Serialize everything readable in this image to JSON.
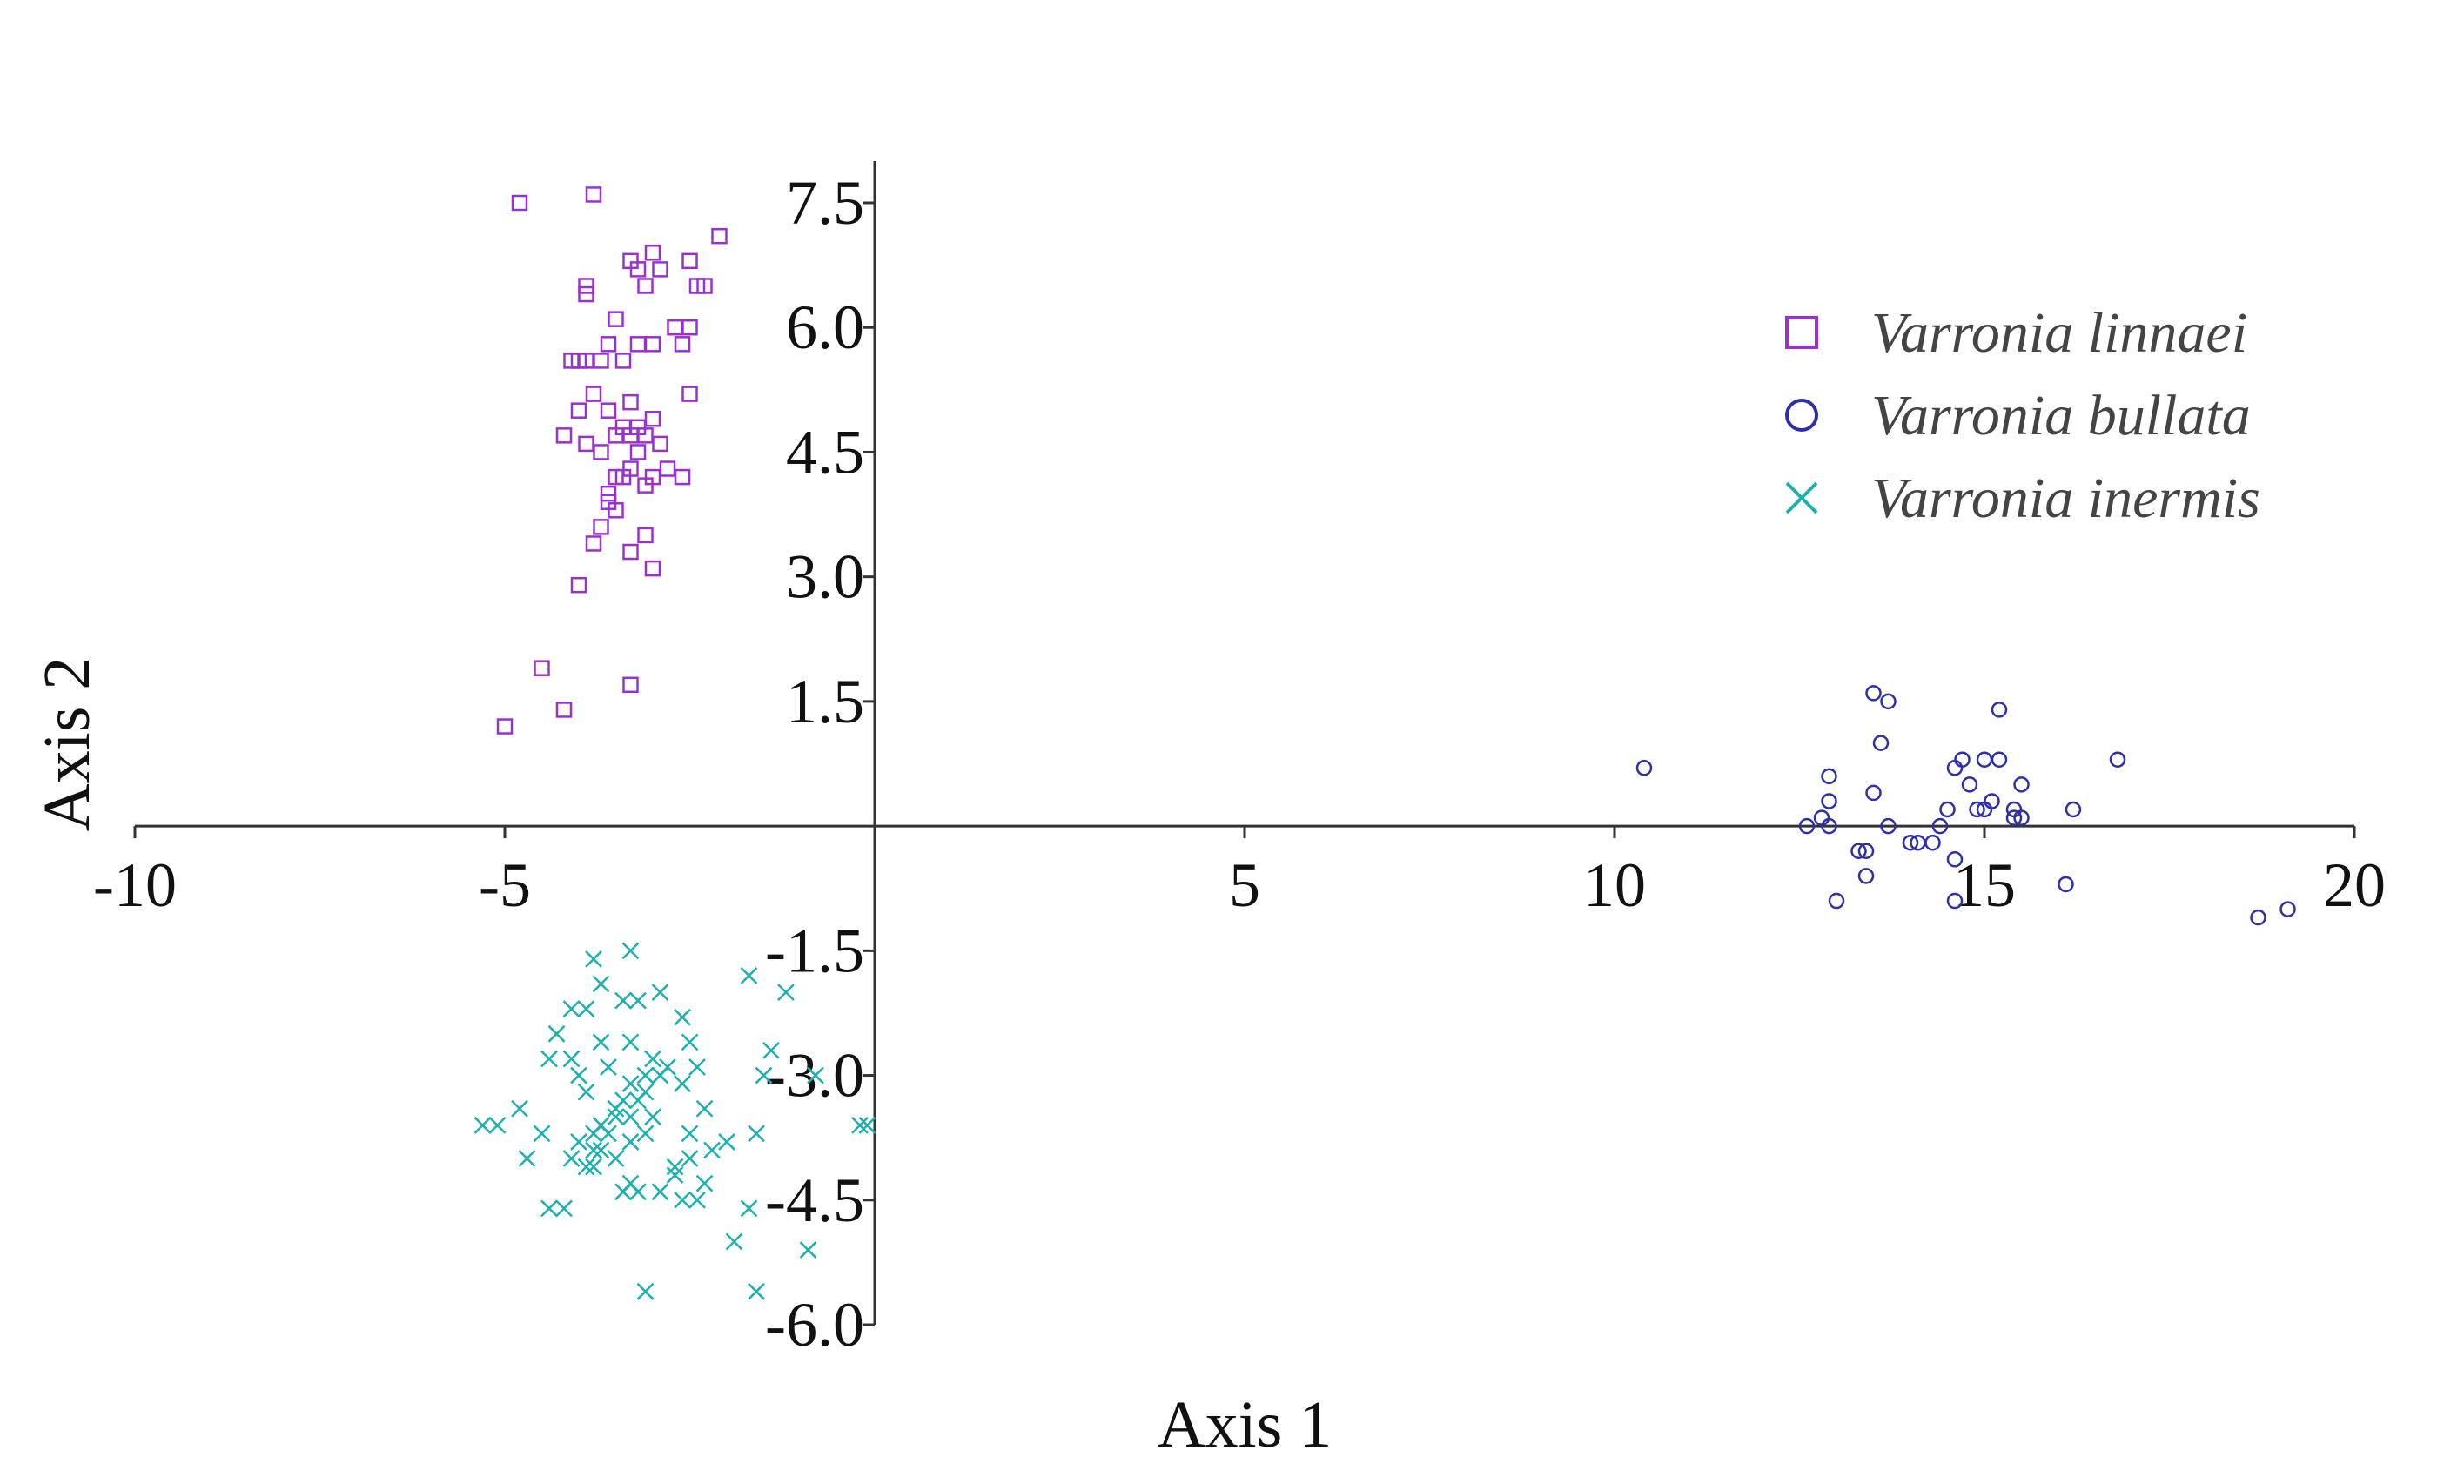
{
  "chart_data": {
    "type": "scatter",
    "title": "",
    "xlabel": "Axis 1",
    "ylabel": "Axis 2",
    "xlim": [
      -10,
      20
    ],
    "ylim": [
      -6.0,
      8.0
    ],
    "x_ticks": [
      -10,
      -5,
      5,
      10,
      15,
      20
    ],
    "x_tick_labels": [
      "-10",
      "-5",
      "5",
      "10",
      "15",
      "20"
    ],
    "y_ticks": [
      7.5,
      6.0,
      4.5,
      3.0,
      1.5,
      -1.5,
      -3.0,
      -4.5,
      -6.0
    ],
    "y_tick_labels": [
      "7.5",
      "6.0",
      "4.5",
      "3.0",
      "1.5",
      "-1.5",
      "-3.0",
      "-4.5",
      "-6.0"
    ],
    "grid": false,
    "legend_position": "top-right",
    "series": [
      {
        "name": "Varronia linnaei",
        "marker": "square",
        "color": "#9B30D0",
        "points": [
          [
            -4.8,
            7.5
          ],
          [
            -3.8,
            7.6
          ],
          [
            -2.1,
            7.1
          ],
          [
            -3.0,
            6.9
          ],
          [
            -3.3,
            6.8
          ],
          [
            -2.5,
            6.8
          ],
          [
            -3.2,
            6.7
          ],
          [
            -2.9,
            6.7
          ],
          [
            -3.1,
            6.5
          ],
          [
            -2.4,
            6.5
          ],
          [
            -2.3,
            6.5
          ],
          [
            -3.9,
            6.5
          ],
          [
            -3.9,
            6.4
          ],
          [
            -3.5,
            6.1
          ],
          [
            -2.7,
            6.0
          ],
          [
            -2.5,
            6.0
          ],
          [
            -3.2,
            5.8
          ],
          [
            -3.0,
            5.8
          ],
          [
            -3.6,
            5.8
          ],
          [
            -4.1,
            5.6
          ],
          [
            -4.0,
            5.6
          ],
          [
            -3.9,
            5.6
          ],
          [
            -3.7,
            5.6
          ],
          [
            -3.4,
            5.6
          ],
          [
            -2.6,
            5.8
          ],
          [
            -2.5,
            5.2
          ],
          [
            -3.8,
            5.2
          ],
          [
            -3.3,
            5.1
          ],
          [
            -4.0,
            5.0
          ],
          [
            -3.6,
            5.0
          ],
          [
            -3.0,
            4.9
          ],
          [
            -3.2,
            4.8
          ],
          [
            -3.4,
            4.8
          ],
          [
            -3.3,
            4.7
          ],
          [
            -3.1,
            4.7
          ],
          [
            -3.5,
            4.7
          ],
          [
            -3.9,
            4.6
          ],
          [
            -3.7,
            4.5
          ],
          [
            -3.2,
            4.5
          ],
          [
            -2.9,
            4.6
          ],
          [
            -4.2,
            4.7
          ],
          [
            -3.3,
            4.3
          ],
          [
            -3.5,
            4.2
          ],
          [
            -3.4,
            4.2
          ],
          [
            -2.6,
            4.2
          ],
          [
            -3.0,
            4.2
          ],
          [
            -2.8,
            4.3
          ],
          [
            -3.6,
            4.0
          ],
          [
            -3.6,
            3.9
          ],
          [
            -3.1,
            4.1
          ],
          [
            -3.5,
            3.8
          ],
          [
            -3.7,
            3.6
          ],
          [
            -3.1,
            3.5
          ],
          [
            -3.8,
            3.4
          ],
          [
            -3.3,
            3.3
          ],
          [
            -3.0,
            3.1
          ],
          [
            -4.0,
            2.9
          ],
          [
            -4.5,
            1.9
          ],
          [
            -3.3,
            1.7
          ],
          [
            -4.2,
            1.4
          ],
          [
            -5.0,
            1.2
          ]
        ]
      },
      {
        "name": "Varronia bullata",
        "marker": "circle",
        "color": "#2F2FA8",
        "points": [
          [
            10.4,
            0.7
          ],
          [
            13.5,
            1.6
          ],
          [
            13.7,
            1.5
          ],
          [
            15.2,
            1.4
          ],
          [
            13.6,
            1.0
          ],
          [
            16.8,
            0.8
          ],
          [
            15.0,
            0.8
          ],
          [
            15.2,
            0.8
          ],
          [
            14.7,
            0.8
          ],
          [
            14.6,
            0.7
          ],
          [
            12.9,
            0.6
          ],
          [
            14.8,
            0.5
          ],
          [
            15.5,
            0.5
          ],
          [
            13.5,
            0.4
          ],
          [
            15.1,
            0.3
          ],
          [
            12.9,
            0.3
          ],
          [
            14.9,
            0.2
          ],
          [
            15.0,
            0.2
          ],
          [
            14.5,
            0.2
          ],
          [
            15.4,
            0.2
          ],
          [
            16.2,
            0.2
          ],
          [
            15.4,
            0.1
          ],
          [
            15.5,
            0.1
          ],
          [
            12.8,
            0.1
          ],
          [
            12.6,
            0.0
          ],
          [
            12.9,
            0.0
          ],
          [
            13.7,
            0.0
          ],
          [
            14.4,
            0.0
          ],
          [
            14.0,
            -0.2
          ],
          [
            14.1,
            -0.2
          ],
          [
            14.3,
            -0.2
          ],
          [
            13.3,
            -0.3
          ],
          [
            13.4,
            -0.3
          ],
          [
            14.6,
            -0.4
          ],
          [
            13.4,
            -0.6
          ],
          [
            16.1,
            -0.7
          ],
          [
            13.0,
            -0.9
          ],
          [
            14.6,
            -0.9
          ],
          [
            18.7,
            -1.1
          ],
          [
            19.1,
            -1.0
          ]
        ]
      },
      {
        "name": "Varronia inermis",
        "marker": "x",
        "color": "#1CB0B0",
        "points": [
          [
            -3.3,
            -1.5
          ],
          [
            -3.8,
            -1.6
          ],
          [
            -1.7,
            -1.8
          ],
          [
            -3.7,
            -1.9
          ],
          [
            -2.9,
            -2.0
          ],
          [
            -1.2,
            -2.0
          ],
          [
            -3.4,
            -2.1
          ],
          [
            -3.2,
            -2.1
          ],
          [
            -3.9,
            -2.2
          ],
          [
            -4.1,
            -2.2
          ],
          [
            -2.6,
            -2.3
          ],
          [
            -4.3,
            -2.5
          ],
          [
            -3.7,
            -2.6
          ],
          [
            -2.5,
            -2.6
          ],
          [
            -3.3,
            -2.6
          ],
          [
            -1.4,
            -2.7
          ],
          [
            -4.1,
            -2.8
          ],
          [
            -3.0,
            -2.8
          ],
          [
            -4.4,
            -2.8
          ],
          [
            -2.8,
            -2.9
          ],
          [
            -3.6,
            -2.9
          ],
          [
            -2.4,
            -2.9
          ],
          [
            -1.5,
            -3.0
          ],
          [
            -4.0,
            -3.0
          ],
          [
            -3.1,
            -3.0
          ],
          [
            -2.9,
            -3.0
          ],
          [
            -2.6,
            -3.1
          ],
          [
            -3.3,
            -3.1
          ],
          [
            -3.9,
            -3.2
          ],
          [
            -3.1,
            -3.2
          ],
          [
            -3.2,
            -3.3
          ],
          [
            -3.4,
            -3.3
          ],
          [
            -3.5,
            -3.4
          ],
          [
            -2.3,
            -3.4
          ],
          [
            -4.8,
            -3.4
          ],
          [
            -3.0,
            -3.5
          ],
          [
            -3.5,
            -3.5
          ],
          [
            -3.3,
            -3.5
          ],
          [
            -3.7,
            -3.6
          ],
          [
            -5.3,
            -3.6
          ],
          [
            -5.1,
            -3.6
          ],
          [
            -0.2,
            -3.6
          ],
          [
            -0.1,
            -3.6
          ],
          [
            -4.5,
            -3.7
          ],
          [
            -3.8,
            -3.7
          ],
          [
            -3.6,
            -3.7
          ],
          [
            -3.1,
            -3.7
          ],
          [
            -2.5,
            -3.7
          ],
          [
            -4.0,
            -3.8
          ],
          [
            -3.3,
            -3.8
          ],
          [
            -2.0,
            -3.8
          ],
          [
            -3.8,
            -3.9
          ],
          [
            -3.7,
            -3.9
          ],
          [
            -2.2,
            -3.9
          ],
          [
            -4.7,
            -4.0
          ],
          [
            -3.5,
            -4.0
          ],
          [
            -2.5,
            -4.0
          ],
          [
            -4.1,
            -4.0
          ],
          [
            -2.7,
            -4.1
          ],
          [
            -3.9,
            -4.1
          ],
          [
            -3.8,
            -4.1
          ],
          [
            -2.7,
            -4.2
          ],
          [
            -3.3,
            -4.3
          ],
          [
            -2.3,
            -4.3
          ],
          [
            -3.4,
            -4.4
          ],
          [
            -2.9,
            -4.4
          ],
          [
            -3.2,
            -4.4
          ],
          [
            -2.6,
            -4.5
          ],
          [
            -2.4,
            -4.5
          ],
          [
            -1.7,
            -4.6
          ],
          [
            -4.2,
            -4.6
          ],
          [
            -4.4,
            -4.6
          ],
          [
            -0.9,
            -5.1
          ],
          [
            -1.9,
            -5.0
          ],
          [
            -3.1,
            -5.6
          ],
          [
            -1.6,
            -5.6
          ],
          [
            -1.6,
            -3.7
          ],
          [
            -0.8,
            -3.0
          ]
        ]
      }
    ]
  }
}
